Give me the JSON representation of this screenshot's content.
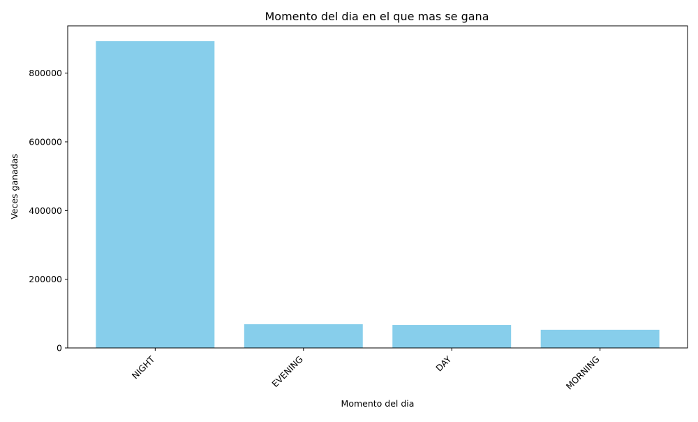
{
  "chart_data": {
    "type": "bar",
    "title": "Momento del dia en el que mas se gana",
    "xlabel": "Momento del dia",
    "ylabel": "Veces ganadas",
    "categories": [
      "NIGHT",
      "EVENING",
      "DAY",
      "MORNING"
    ],
    "values": [
      893000,
      69000,
      67000,
      53000
    ],
    "ylim": [
      0,
      937650
    ],
    "yticks": [
      0,
      200000,
      400000,
      600000,
      800000
    ],
    "grid": false,
    "bar_color": "#87CEEB"
  }
}
